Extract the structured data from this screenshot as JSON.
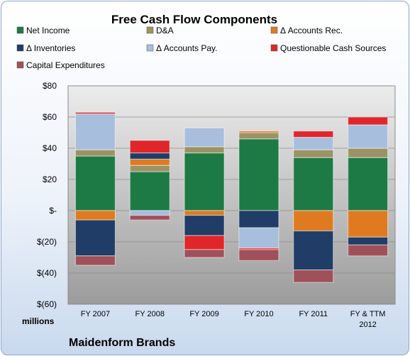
{
  "chart_data": {
    "type": "bar",
    "stacked": true,
    "title": "Free Cash Flow Components",
    "unit_label": "millions",
    "company": "Maidenform Brands",
    "categories": [
      [
        "FY 2007"
      ],
      [
        "FY 2008"
      ],
      [
        "FY 2009"
      ],
      [
        "FY 2010"
      ],
      [
        "FY 2011"
      ],
      [
        "FY & TTM",
        "2012"
      ]
    ],
    "ylim": [
      -60,
      80
    ],
    "yticks": [
      80,
      60,
      40,
      20,
      0,
      -20,
      -40,
      -60
    ],
    "ytick_labels": [
      "$80",
      "$60",
      "$40",
      "$20",
      "$-",
      "$(20)",
      "$(40)",
      "$(60)"
    ],
    "grid": true,
    "legend_position": "top",
    "series": [
      {
        "name": "Net Income",
        "color": "#1e7a44",
        "values": [
          35,
          25,
          37,
          46,
          34,
          34
        ]
      },
      {
        "name": "D&A",
        "color": "#9b9366",
        "values": [
          4,
          4,
          4,
          4,
          5,
          6
        ]
      },
      {
        "name": "Δ Accounts Rec.",
        "color": "#e07a20",
        "values": [
          -6,
          4,
          -3,
          1,
          -13,
          -17
        ]
      },
      {
        "name": "Δ Inventories",
        "color": "#1f3d66",
        "values": [
          -23,
          4,
          -13,
          -11,
          -25,
          -5
        ]
      },
      {
        "name": "Δ Accounts Pay.",
        "color": "#a7bedd",
        "values": [
          23,
          -3,
          12,
          -13,
          8,
          15
        ]
      },
      {
        "name": "Questionable Cash Sources",
        "color": "#e0262b",
        "values": [
          1,
          8,
          -9,
          -1,
          4,
          5
        ]
      },
      {
        "name": "Capital Expenditures",
        "color": "#a0505a",
        "values": [
          -6,
          -3,
          -5,
          -7,
          -8,
          -7
        ]
      }
    ]
  }
}
